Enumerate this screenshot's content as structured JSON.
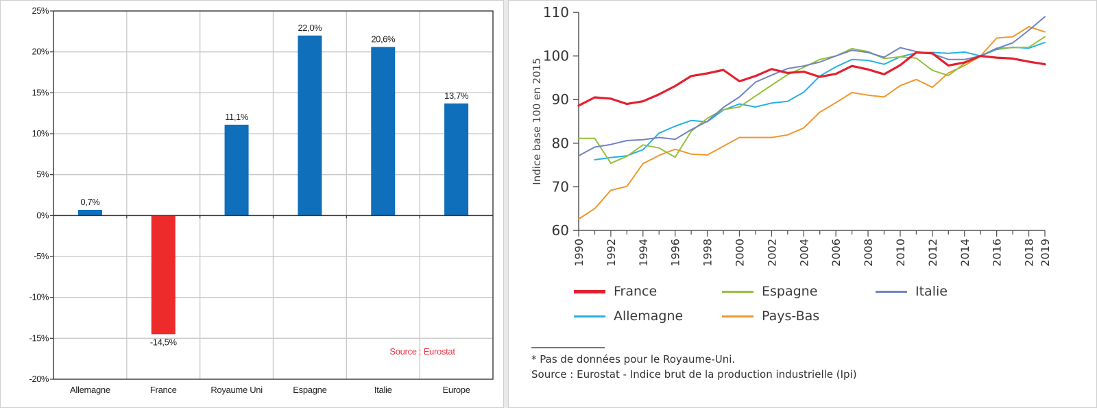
{
  "chart_data": [
    {
      "type": "bar",
      "title": "",
      "xlabel": "",
      "ylabel": "",
      "categories": [
        "Allemagne",
        "France",
        "Royaume Uni",
        "Espagne",
        "Italie",
        "Europe"
      ],
      "values": [
        0.7,
        -14.5,
        11.1,
        22.0,
        20.6,
        13.7
      ],
      "value_labels": [
        "0,7%",
        "-14,5%",
        "11,1%",
        "22,0%",
        "20,6%",
        "13,7%"
      ],
      "bar_colors": [
        "#0f6fba",
        "#ee2b2b",
        "#0f6fba",
        "#0f6fba",
        "#0f6fba",
        "#0f6fba"
      ],
      "ylim": [
        -20,
        25
      ],
      "yticks": [
        25,
        20,
        15,
        10,
        5,
        0,
        -5,
        -10,
        -15,
        -20
      ],
      "ytick_labels": [
        "25%",
        "20%",
        "15%",
        "10%",
        "5%",
        "0%",
        "-5%",
        "-10%",
        "-15%",
        "-20%"
      ],
      "grid": true,
      "annotation": {
        "text": "Source : Eurostat",
        "color": "#ee3344"
      }
    },
    {
      "type": "line",
      "title": "",
      "xlabel": "",
      "ylabel": "Indice base 100 en 2015",
      "x": [
        1990,
        1991,
        1992,
        1993,
        1994,
        1995,
        1996,
        1997,
        1998,
        1999,
        2000,
        2001,
        2002,
        2003,
        2004,
        2005,
        2006,
        2007,
        2008,
        2009,
        2010,
        2011,
        2012,
        2013,
        2014,
        2015,
        2016,
        2017,
        2018,
        2019
      ],
      "xlim": [
        1990,
        2019
      ],
      "xticks": [
        1990,
        1992,
        1994,
        1996,
        1998,
        2000,
        2002,
        2004,
        2006,
        2008,
        2010,
        2012,
        2014,
        2016,
        2018,
        2019
      ],
      "ylim": [
        60,
        110
      ],
      "yticks": [
        60,
        70,
        80,
        90,
        100,
        110
      ],
      "grid": false,
      "legend_position": "bottom",
      "series": [
        {
          "name": "France",
          "color": "#e3202e",
          "width": 3.2,
          "values": [
            88.6,
            90.5,
            90.2,
            89.0,
            89.6,
            91.2,
            93.1,
            95.4,
            96.0,
            96.8,
            94.2,
            95.4,
            97.0,
            96.1,
            96.4,
            95.2,
            95.9,
            97.7,
            96.9,
            95.8,
            97.9,
            100.8,
            100.6,
            97.8,
            98.5,
            100.0,
            99.6,
            99.4,
            98.7,
            98.1
          ]
        },
        {
          "name": "Espagne",
          "color": "#95bf3c",
          "width": 2,
          "values": [
            81.1,
            81.1,
            75.4,
            77.0,
            79.6,
            78.9,
            76.8,
            82.7,
            85.7,
            87.7,
            88.3,
            90.8,
            93.3,
            95.7,
            97.4,
            99.2,
            100.0,
            101.7,
            101.0,
            99.4,
            99.8,
            99.5,
            96.7,
            95.5,
            98.3,
            100.0,
            101.8,
            101.9,
            102.0,
            104.4
          ]
        },
        {
          "name": "Italie",
          "color": "#7083c2",
          "width": 2,
          "values": [
            77.1,
            79.1,
            79.7,
            80.6,
            80.8,
            81.3,
            80.9,
            83.1,
            85.0,
            88.2,
            90.6,
            94.0,
            95.6,
            97.1,
            97.7,
            98.6,
            100.0,
            101.3,
            100.8,
            99.7,
            101.9,
            101.0,
            100.5,
            99.2,
            99.2,
            100.0,
            101.7,
            103.0,
            105.9,
            109.0
          ]
        },
        {
          "name": "Allemagne",
          "color": "#24b0e6",
          "width": 2,
          "values": [
            null,
            76.2,
            76.7,
            77.1,
            78.5,
            82.3,
            83.9,
            85.2,
            84.9,
            87.6,
            89.0,
            88.3,
            89.2,
            89.6,
            91.7,
            95.4,
            97.5,
            99.2,
            99.0,
            98.1,
            99.8,
            100.7,
            100.8,
            100.6,
            100.9,
            100.0,
            101.5,
            102.0,
            101.8,
            103.1
          ]
        },
        {
          "name": "Pays-Bas",
          "color": "#f2962a",
          "width": 2,
          "values": [
            62.6,
            65.0,
            69.2,
            70.1,
            75.3,
            77.2,
            78.6,
            77.5,
            77.3,
            79.3,
            81.3,
            81.3,
            81.3,
            81.9,
            83.5,
            87.1,
            89.3,
            91.6,
            91.0,
            90.6,
            93.2,
            94.6,
            92.8,
            96.1,
            97.8,
            100.0,
            104.1,
            104.4,
            106.7,
            105.5
          ]
        }
      ]
    }
  ],
  "right_panel": {
    "ylabel": "Indice base 100 en 2015",
    "legend": [
      {
        "label": "France",
        "color": "#e3202e"
      },
      {
        "label": "Espagne",
        "color": "#95bf3c"
      },
      {
        "label": "Italie",
        "color": "#7083c2"
      },
      {
        "label": "Allemagne",
        "color": "#24b0e6"
      },
      {
        "label": "Pays-Bas",
        "color": "#f2962a"
      }
    ],
    "footnote_1": "* Pas de données pour le Royaume-Uni.",
    "footnote_2": "Source : Eurostat - Indice brut de la production industrielle (Ipi)"
  }
}
